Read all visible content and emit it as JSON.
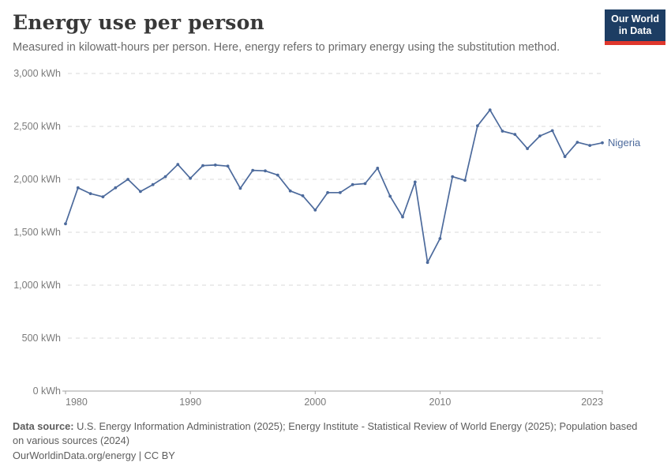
{
  "header": {
    "title": "Energy use per person",
    "subtitle": "Measured in kilowatt-hours per person. Here, energy refers to primary energy using the substitution method.",
    "logo": {
      "line1": "Our World",
      "line2": "in Data",
      "bg_color": "#1d3d63",
      "accent_color": "#e0372c"
    }
  },
  "chart_data": {
    "type": "line",
    "title": "Energy use per person",
    "subtitle": "Measured in kilowatt-hours per person. Here, energy refers to primary energy using the substitution method.",
    "unit_suffix": " kWh",
    "xlabel": "",
    "ylabel": "",
    "ylim": [
      0,
      3000
    ],
    "ytick_step": 500,
    "xticks": [
      1980,
      1990,
      2000,
      2010,
      2023
    ],
    "grid": "horizontal-dashed",
    "legend_position": "end-of-line",
    "series": [
      {
        "name": "Nigeria",
        "color": "#4c6a9c",
        "years": [
          1980,
          1981,
          1982,
          1983,
          1984,
          1985,
          1986,
          1987,
          1988,
          1989,
          1990,
          1991,
          1992,
          1993,
          1994,
          1995,
          1996,
          1997,
          1998,
          1999,
          2000,
          2001,
          2002,
          2003,
          2004,
          2005,
          2006,
          2007,
          2008,
          2009,
          2010,
          2011,
          2012,
          2013,
          2014,
          2015,
          2016,
          2017,
          2018,
          2019,
          2020,
          2021,
          2022,
          2023
        ],
        "values": [
          1580,
          1920,
          1865,
          1835,
          1920,
          2000,
          1885,
          1950,
          2025,
          2140,
          2010,
          2130,
          2135,
          2125,
          1915,
          2085,
          2080,
          2040,
          1890,
          1845,
          1710,
          1875,
          1875,
          1950,
          1960,
          2105,
          1840,
          1645,
          1975,
          1215,
          1440,
          2025,
          1990,
          2505,
          2655,
          2455,
          2425,
          2290,
          2410,
          2460,
          2215,
          2350,
          2320,
          2345
        ]
      }
    ],
    "axis_colors": {
      "grid": "#d9d9d9",
      "axis": "#a1a1a1",
      "tick_label": "#7a7a7a"
    }
  },
  "footer": {
    "source_label": "Data source:",
    "source_text": " U.S. Energy Information Administration (2025); Energy Institute - Statistical Review of World Energy (2025); Population based on various sources (2024)",
    "license_text": "OurWorldinData.org/energy | CC BY"
  }
}
